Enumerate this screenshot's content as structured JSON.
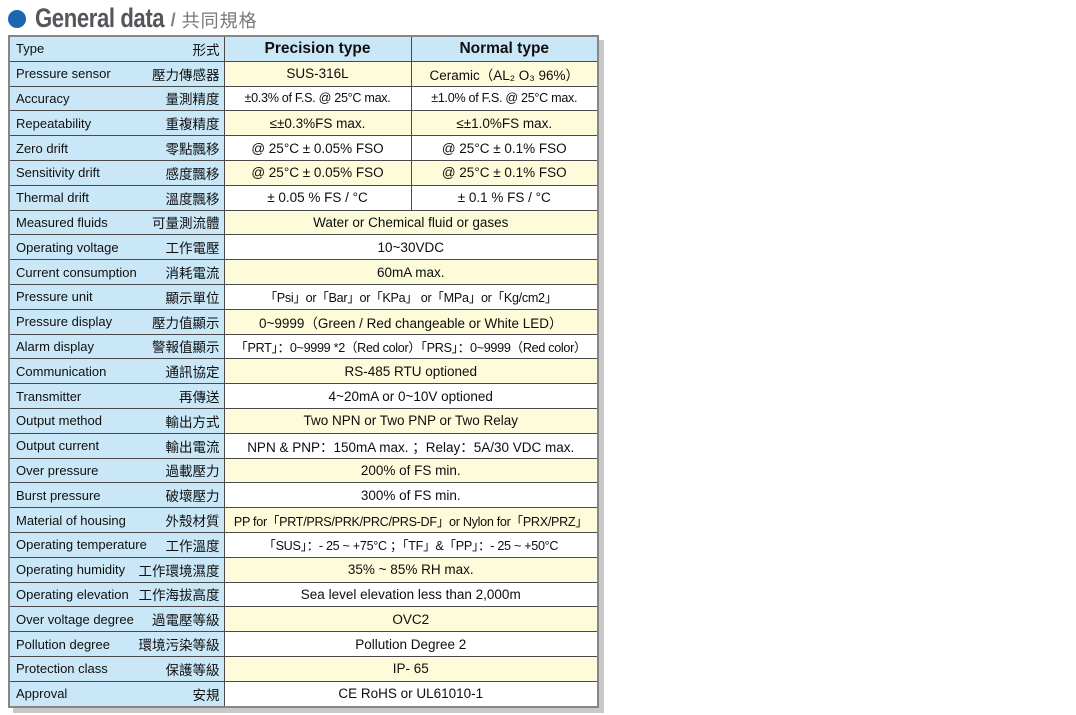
{
  "title": {
    "main": "General data",
    "separator": "/",
    "sub": "共同規格"
  },
  "accent_colors": {
    "bullet_blue": "#1a66b0",
    "label_blue": "#cae7f7",
    "row_cream": "#fdfbda",
    "shadow_gray": "#c9c9c9"
  },
  "table": {
    "header": {
      "label_en": "Type",
      "label_zh": "形式",
      "col_precision": "Precision type",
      "col_normal": "Normal type"
    },
    "rows": [
      {
        "en": "Pressure sensor",
        "zh": "壓力傳感器",
        "precision": "SUS-316L",
        "normal": "Ceramic（AL₂ O₃ 96%）"
      },
      {
        "en": "Accuracy",
        "zh": "量測精度",
        "precision": "±0.3% of F.S. @ 25°C max.",
        "normal": "±1.0% of F.S. @ 25°C max."
      },
      {
        "en": "Repeatability",
        "zh": "重複精度",
        "precision": "≤±0.3%FS max.",
        "normal": "≤±1.0%FS max."
      },
      {
        "en": "Zero drift",
        "zh": "零點飄移",
        "precision": "@ 25°C ± 0.05% FSO",
        "normal": "@ 25°C ± 0.1% FSO"
      },
      {
        "en": "Sensitivity drift",
        "zh": "感度飄移",
        "precision": "@ 25°C ± 0.05% FSO",
        "normal": "@ 25°C ± 0.1% FSO"
      },
      {
        "en": "Thermal drift",
        "zh": "溫度飄移",
        "precision": "± 0.05 % FS / °C",
        "normal": "± 0.1 % FS / °C"
      },
      {
        "en": "Measured fluids",
        "zh": "可量測流體",
        "value": "Water or Chemical fluid or gases"
      },
      {
        "en": "Operating voltage",
        "zh": "工作電壓",
        "value": "10~30VDC"
      },
      {
        "en": "Current consumption",
        "zh": "消耗電流",
        "value": "60mA max."
      },
      {
        "en": "Pressure unit",
        "zh": "顯示單位",
        "value": "「Psi」or「Bar」or「KPa」 or「MPa」or「Kg/cm2」"
      },
      {
        "en": "Pressure display",
        "zh": "壓力值顯示",
        "value": "0~9999（Green / Red changeable or White LED）"
      },
      {
        "en": "Alarm display",
        "zh": "警報值顯示",
        "value": "「PRT」：0~9999 *2（Red color）「PRS」：0~9999（Red color）"
      },
      {
        "en": "Communication",
        "zh": "通訊協定",
        "value": "RS-485 RTU optioned"
      },
      {
        "en": "Transmitter",
        "zh": "再傳送",
        "value": "4~20mA or 0~10V optioned"
      },
      {
        "en": "Output method",
        "zh": "輸出方式",
        "value": "Two NPN or Two PNP or Two Relay"
      },
      {
        "en": "Output current",
        "zh": "輸出電流",
        "value": "NPN & PNP：150mA max. ；Relay：5A/30 VDC max."
      },
      {
        "en": "Over pressure",
        "zh": "過載壓力",
        "value": "200% of FS min."
      },
      {
        "en": "Burst pressure",
        "zh": "破壞壓力",
        "value": "300% of FS min."
      },
      {
        "en": "Material of housing",
        "zh": "外殼材質",
        "value": "PP for「PRT/PRS/PRK/PRC/PRS-DF」or Nylon for「PRX/PRZ」"
      },
      {
        "en": "Operating temperature",
        "zh": "工作溫度",
        "value": "「SUS」：- 25 ~ +75°C ；「TF」&「PP」：- 25 ~ +50°C"
      },
      {
        "en": "Operating humidity",
        "zh": "工作環境濕度",
        "value": "35% ~ 85% RH max."
      },
      {
        "en": "Operating elevation",
        "zh": "工作海拔高度",
        "value": "Sea level elevation less than 2,000m"
      },
      {
        "en": "Over voltage degree",
        "zh": "過電壓等級",
        "value": "OVC2"
      },
      {
        "en": "Pollution degree",
        "zh": "環境污染等級",
        "value": "Pollution Degree 2"
      },
      {
        "en": "Protection class",
        "zh": "保護等級",
        "value": "IP- 65"
      },
      {
        "en": "Approval",
        "zh": "安規",
        "value": "CE RoHS or UL61010-1"
      }
    ]
  }
}
